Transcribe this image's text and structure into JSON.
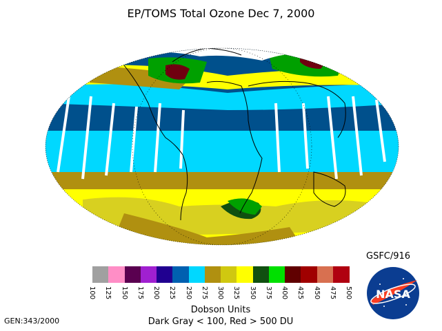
{
  "title": "EP/TOMS Total Ozone Dec  7, 2000",
  "colorbar": {
    "units_label": "Dobson Units",
    "note": "Dark Gray < 100, Red > 500 DU",
    "ticks": [
      "100",
      "125",
      "150",
      "175",
      "200",
      "225",
      "250",
      "275",
      "300",
      "325",
      "350",
      "375",
      "400",
      "425",
      "450",
      "475",
      "500"
    ],
    "colors": [
      "#a0a0a0",
      "#ff8ec6",
      "#5a0050",
      "#a020d0",
      "#200090",
      "#0060b0",
      "#00d8ff",
      "#b09010",
      "#d0c810",
      "#ffff00",
      "#105010",
      "#00e000",
      "#600000",
      "#a00000",
      "#d87050",
      "#b00010"
    ]
  },
  "credit": "GSFC/916",
  "gen_label": "GEN:343/2000",
  "logo_text": "NASA",
  "map_colors": {
    "blue": "#00508c",
    "cyan": "#00d8ff",
    "olive": "#b09010",
    "yellow": "#ffff00",
    "lightyellow": "#d8d020",
    "green": "#00a000",
    "darkgreen": "#105010",
    "darkred": "#700010"
  }
}
